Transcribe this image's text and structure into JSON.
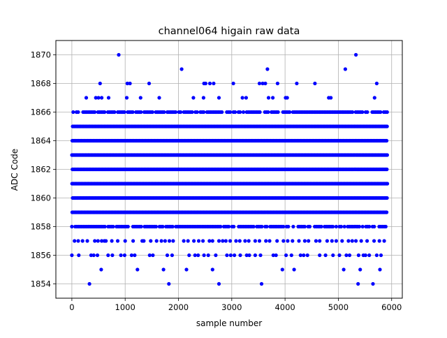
{
  "chart_data": {
    "type": "scatter",
    "title": "channel064 higain raw data",
    "xlabel": "sample number",
    "ylabel": "ADC Code",
    "xlim": [
      -300,
      6200
    ],
    "ylim": [
      1853.0,
      1871.0
    ],
    "x_ticks": [
      0,
      1000,
      2000,
      3000,
      4000,
      5000,
      6000
    ],
    "y_ticks": [
      1854,
      1856,
      1858,
      1860,
      1862,
      1864,
      1866,
      1868,
      1870
    ],
    "grid": true,
    "marker_color": "#0000ff",
    "sample_range": [
      0,
      5920
    ],
    "dense_levels": [
      1858,
      1859,
      1860,
      1861,
      1862,
      1863,
      1864,
      1865,
      1866
    ],
    "sparse_points": {
      "1870": [
        880,
        5330
      ],
      "1869": [
        2060,
        3670,
        5130
      ],
      "1868": [
        530,
        1040,
        1090,
        1450,
        2480,
        2510,
        2590,
        2660,
        3030,
        3520,
        3580,
        3630,
        3860,
        4220,
        4560,
        5720
      ],
      "1867": [
        270,
        450,
        500,
        560,
        690,
        1030,
        1290,
        1640,
        2280,
        2470,
        2760,
        3200,
        3270,
        3690,
        3770,
        4010,
        4040,
        4820,
        4860,
        5680
      ],
      "1857": [
        50,
        120,
        200,
        290,
        430,
        490,
        560,
        610,
        640,
        750,
        860,
        1000,
        1150,
        1320,
        1350,
        1480,
        1590,
        1680,
        1750,
        1830,
        1900,
        2100,
        2180,
        2290,
        2380,
        2460,
        2580,
        2640,
        2760,
        2830,
        2890,
        2970,
        3080,
        3150,
        3250,
        3320,
        3440,
        3520,
        3640,
        3710,
        3850,
        3970,
        4050,
        4140,
        4260,
        4370,
        4440,
        4580,
        4650,
        4790,
        4880,
        4960,
        5070,
        5190,
        5260,
        5330,
        5430,
        5540,
        5670,
        5770,
        5860
      ],
      "1856": [
        0,
        130,
        360,
        410,
        480,
        680,
        760,
        920,
        990,
        1120,
        1180,
        1460,
        1520,
        1790,
        1880,
        2200,
        2310,
        2370,
        2480,
        2560,
        2700,
        2910,
        2980,
        3050,
        3160,
        3280,
        3330,
        3440,
        3540,
        3780,
        3830,
        4020,
        4120,
        4290,
        4350,
        4420,
        4650,
        4760,
        4900,
        5020,
        5150,
        5210,
        5380,
        5470,
        5510,
        5580,
        5720,
        5800
      ],
      "1855": [
        550,
        1230,
        1720,
        2150,
        2640,
        3950,
        4170,
        5100,
        5410,
        5780
      ],
      "1854": [
        330,
        1820,
        2760,
        3560,
        5370,
        5650
      ]
    }
  }
}
